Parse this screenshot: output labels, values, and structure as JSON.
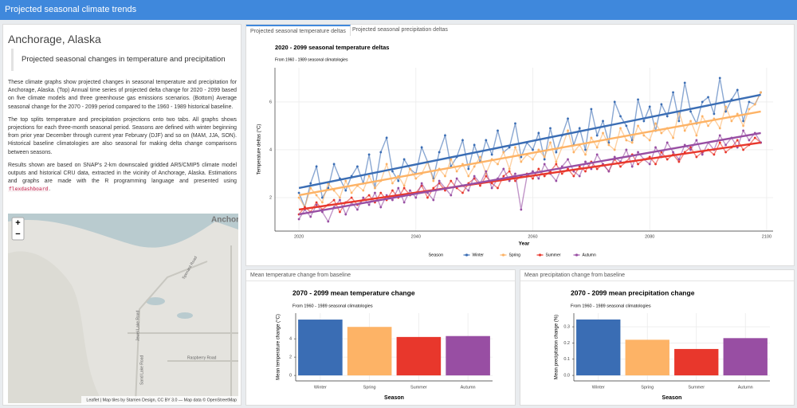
{
  "header": {
    "title": "Projected seasonal climate trends"
  },
  "sidebar": {
    "heading": "Anchorage, Alaska",
    "blockquote": "Projected seasonal changes in temperature and precipitation",
    "paragraphs": [
      "These climate graphs show projected changes in seasonal temperature and precipitation for Anchorage, Alaska. (Top) Annual time series of projected delta change for 2020 - 2099 based on five climate models and three greenhouse gas emissions scenarios. (Bottom) Average seasonal change for the 2070 - 2099 period compared to the 1960 - 1989 historical baseline.",
      "The top splits temperature and precipitation projections onto two tabs. All graphs shows projections for each three-month seasonal period. Seasons are defined with winter beginning from prior year December through current year February (DJF) and so on (MAM, JJA, SON). Historical baseline climatologies are also seasonal for making delta change comparisons between seasons."
    ],
    "results": {
      "text": "Results shown are based on SNAP's 2-km downscaled gridded AR5/CMIP5 climate model outputs and historical CRU data, extracted in the vicinity of Anchorage, Alaska. Estimations and graphs are made with the R programming language and presented using",
      "code": "flexdashboard",
      "end": "."
    }
  },
  "map": {
    "city_label": "Anchor",
    "zoom_in": "+",
    "zoom_out": "−",
    "roads": [
      "Spenard Road",
      "Jewel Lake Road",
      "Raspberry Road",
      "Sand Lake Road"
    ],
    "attribution": "Leaflet | Map tiles by Stamen Design, CC BY 3.0 — Map data © OpenStreetMap"
  },
  "tabs": [
    "Projected seasonal temperature deltas",
    "Projected seasonal precipitation deltas"
  ],
  "panels": [
    "Mean temperature change from baseline",
    "Mean precipitation change from baseline"
  ],
  "chart_data": [
    {
      "type": "line",
      "title": "2020 - 2099 seasonal temperature deltas",
      "subtitle": "From 1960 - 1989 seasonal climatologies",
      "x_label": "Year",
      "y_label": "Temperature deltas (°C)",
      "legend_title": "Season",
      "legend": "bottom",
      "grid": true,
      "xlim": [
        2015.9,
        2101.1
      ],
      "xticks": [
        2020,
        2040,
        2060,
        2080,
        2100
      ],
      "ylim": [
        0.6,
        7.43
      ],
      "yticks": [
        2,
        4,
        6
      ],
      "x": [
        2020,
        2021,
        2022,
        2023,
        2024,
        2025,
        2026,
        2027,
        2028,
        2029,
        2030,
        2031,
        2032,
        2033,
        2034,
        2035,
        2036,
        2037,
        2038,
        2039,
        2040,
        2041,
        2042,
        2043,
        2044,
        2045,
        2046,
        2047,
        2048,
        2049,
        2050,
        2051,
        2052,
        2053,
        2054,
        2055,
        2056,
        2057,
        2058,
        2059,
        2060,
        2061,
        2062,
        2063,
        2064,
        2065,
        2066,
        2067,
        2068,
        2069,
        2070,
        2071,
        2072,
        2073,
        2074,
        2075,
        2076,
        2077,
        2078,
        2079,
        2080,
        2081,
        2082,
        2083,
        2084,
        2085,
        2086,
        2087,
        2088,
        2089,
        2090,
        2091,
        2092,
        2093,
        2094,
        2095,
        2096,
        2097,
        2098,
        2099
      ],
      "trend_x": [
        2020,
        2099
      ],
      "series": [
        {
          "name": "Winter",
          "color": "#3a6db4",
          "trend": [
            2.4,
            6.3
          ],
          "values": [
            2.2,
            1.6,
            2.6,
            3.3,
            2.0,
            2.4,
            3.4,
            2.8,
            2.3,
            2.9,
            3.3,
            2.6,
            3.8,
            2.4,
            3.9,
            4.5,
            3.1,
            2.7,
            3.6,
            3.2,
            3.0,
            4.1,
            3.5,
            2.8,
            3.9,
            4.6,
            3.3,
            3.7,
            4.4,
            3.2,
            4.2,
            3.5,
            4.4,
            3.8,
            4.8,
            3.9,
            4.1,
            5.1,
            3.7,
            4.3,
            4.0,
            4.7,
            3.6,
            4.9,
            3.9,
            4.6,
            5.3,
            4.2,
            4.9,
            4.0,
            5.7,
            4.6,
            5.2,
            4.3,
            6.0,
            5.4,
            5.0,
            4.4,
            6.1,
            5.2,
            5.8,
            4.8,
            5.9,
            5.4,
            6.4,
            5.2,
            6.8,
            5.6,
            5.1,
            6.0,
            6.2,
            5.5,
            7.0,
            5.6,
            6.1,
            6.5,
            5.2,
            6.0,
            5.9,
            6.4
          ]
        },
        {
          "name": "Spring",
          "color": "#fdb366",
          "trend": [
            2.1,
            5.6
          ],
          "values": [
            2.0,
            1.6,
            2.4,
            2.1,
            1.8,
            2.6,
            2.3,
            2.0,
            2.7,
            2.2,
            2.5,
            2.3,
            2.9,
            2.4,
            2.7,
            3.4,
            2.6,
            2.9,
            2.5,
            3.2,
            2.8,
            3.0,
            3.5,
            2.7,
            3.2,
            2.9,
            3.6,
            3.1,
            3.4,
            2.9,
            3.3,
            3.7,
            3.0,
            3.6,
            3.4,
            3.9,
            3.2,
            4.1,
            3.5,
            3.8,
            3.6,
            4.0,
            3.7,
            4.3,
            3.5,
            4.1,
            4.8,
            3.9,
            4.2,
            3.8,
            4.5,
            4.1,
            4.7,
            4.2,
            4.0,
            4.9,
            4.4,
            4.3,
            5.0,
            4.6,
            4.4,
            5.1,
            4.7,
            4.9,
            4.5,
            5.6,
            4.8,
            5.2,
            4.6,
            5.4,
            5.0,
            5.3,
            4.9,
            5.8,
            5.2,
            5.5,
            5.0,
            5.7,
            5.9,
            6.4
          ]
        },
        {
          "name": "Summer",
          "color": "#e8372c",
          "trend": [
            1.5,
            4.3
          ],
          "values": [
            1.3,
            1.6,
            1.4,
            1.8,
            1.5,
            1.7,
            1.9,
            1.4,
            1.8,
            2.0,
            1.7,
            1.9,
            2.1,
            1.8,
            2.2,
            1.9,
            2.3,
            2.0,
            2.4,
            2.1,
            2.2,
            2.5,
            2.0,
            2.4,
            2.6,
            2.3,
            2.7,
            2.4,
            2.2,
            2.6,
            2.8,
            2.5,
            2.9,
            2.6,
            2.4,
            2.9,
            3.1,
            2.7,
            2.9,
            3.0,
            2.8,
            3.2,
            2.9,
            3.1,
            3.4,
            3.0,
            3.2,
            2.9,
            3.3,
            3.1,
            3.5,
            3.2,
            3.4,
            3.1,
            3.6,
            3.3,
            3.5,
            3.8,
            3.4,
            3.6,
            3.7,
            3.4,
            3.9,
            3.6,
            3.8,
            3.5,
            3.9,
            4.1,
            3.7,
            3.9,
            4.0,
            3.8,
            4.3,
            3.9,
            4.1,
            4.4,
            4.0,
            4.2,
            4.5,
            4.3
          ]
        },
        {
          "name": "Autumn",
          "color": "#984ea3",
          "trend": [
            1.3,
            4.7
          ],
          "values": [
            1.1,
            1.5,
            1.2,
            1.7,
            1.4,
            1.0,
            1.6,
            1.9,
            1.3,
            1.8,
            1.5,
            2.0,
            1.7,
            2.2,
            1.6,
            2.1,
            1.9,
            2.4,
            1.8,
            2.3,
            2.0,
            2.6,
            2.2,
            1.9,
            2.7,
            2.4,
            2.1,
            2.8,
            2.5,
            2.3,
            2.9,
            2.6,
            3.1,
            2.4,
            2.8,
            3.2,
            2.7,
            3.0,
            1.5,
            2.9,
            3.1,
            2.8,
            3.4,
            3.0,
            2.7,
            3.3,
            3.6,
            3.1,
            2.9,
            3.5,
            3.2,
            3.8,
            3.4,
            3.1,
            3.7,
            3.5,
            4.0,
            3.3,
            3.9,
            3.6,
            3.4,
            4.1,
            3.7,
            4.3,
            3.9,
            3.6,
            4.2,
            4.0,
            4.4,
            3.8,
            4.3,
            4.0,
            4.6,
            4.2,
            4.5,
            4.1,
            4.8,
            4.4,
            4.7,
            4.3
          ]
        }
      ]
    },
    {
      "type": "bar",
      "title": "2070 - 2099 mean temperature change",
      "subtitle": "From 1960 - 1989 seasonal climatologies",
      "x_label": "Season",
      "y_label": "Mean temperature change (°C)",
      "categories": [
        "Winter",
        "Spring",
        "Summer",
        "Autumn"
      ],
      "values": [
        6.1,
        5.3,
        4.2,
        4.3
      ],
      "colors": [
        "#3a6db4",
        "#fdb366",
        "#e8372c",
        "#984ea3"
      ],
      "ylim": [
        -0.6,
        6.8
      ],
      "yticks": [
        0,
        2,
        4
      ],
      "grid": true
    },
    {
      "type": "bar",
      "title": "2070 - 2099 mean precipitation change",
      "subtitle": "From 1960 - 1989 seasonal climatologies",
      "x_label": "Season",
      "y_label": "Mean precipitation change (%)",
      "categories": [
        "Winter",
        "Spring",
        "Summer",
        "Autumn"
      ],
      "values": [
        0.345,
        0.22,
        0.163,
        0.23
      ],
      "colors": [
        "#3a6db4",
        "#fdb366",
        "#e8372c",
        "#984ea3"
      ],
      "ylim": [
        -0.034,
        0.384
      ],
      "yticks": [
        {
          "value": 0,
          "label": "0.0"
        },
        0.1,
        0.2,
        0.3
      ],
      "grid": true
    }
  ]
}
